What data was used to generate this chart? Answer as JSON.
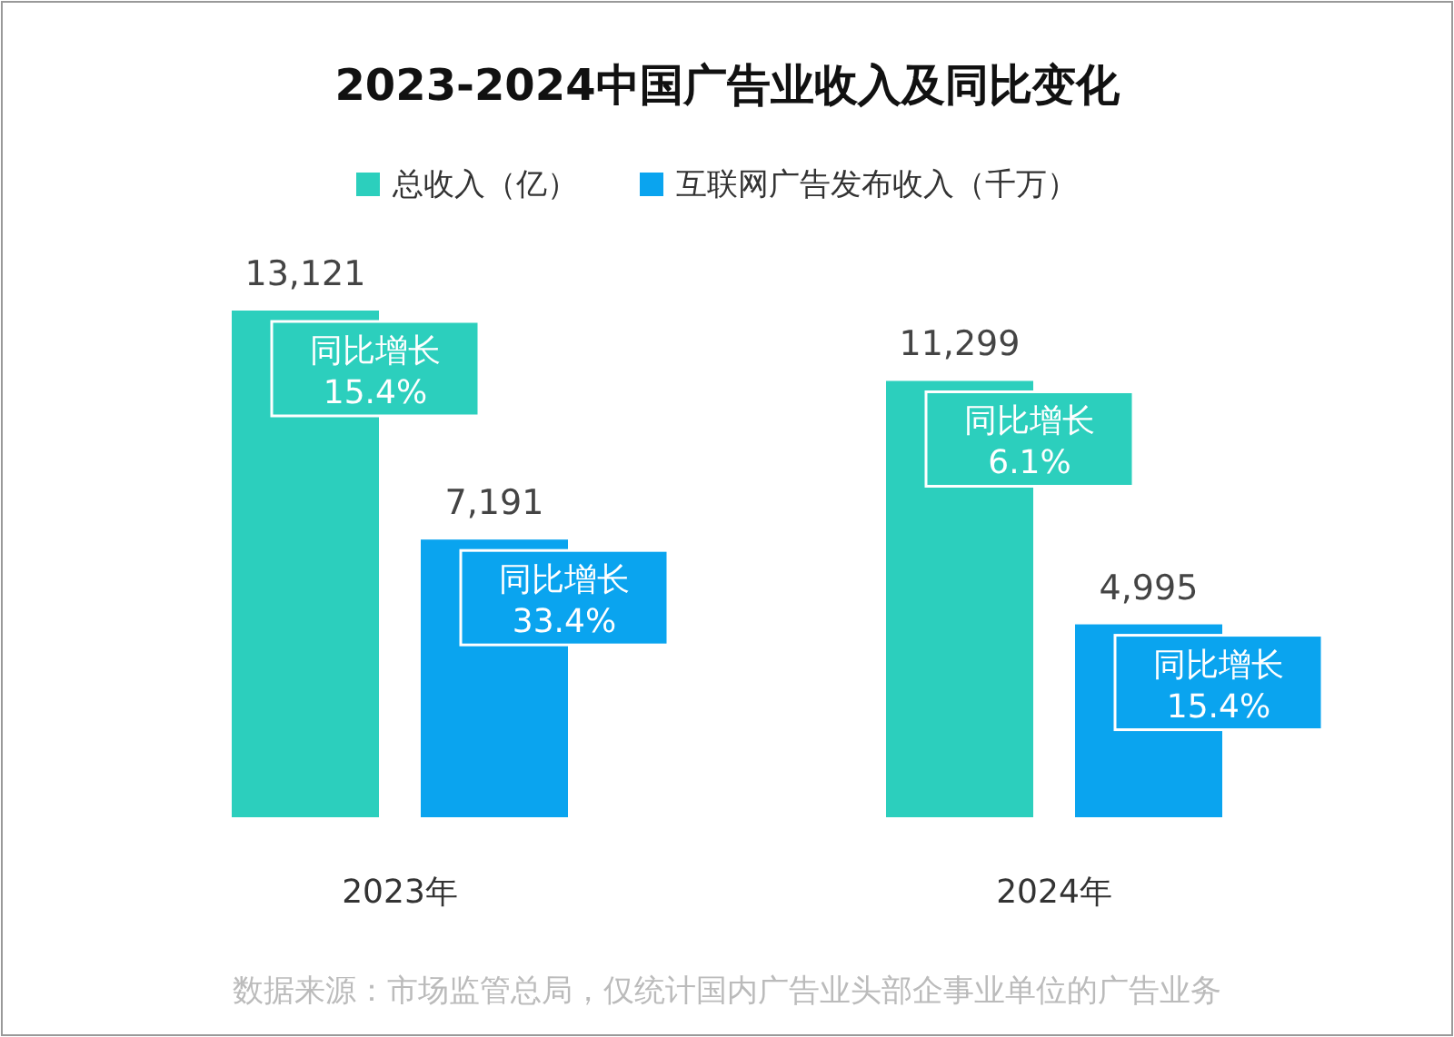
{
  "chart_data": {
    "type": "bar",
    "title": "2023-2024中国广告业收入及同比变化",
    "categories": [
      "2023年",
      "2024年"
    ],
    "series": [
      {
        "name": "总收入（亿）",
        "color": "#2ccfbd",
        "values": [
          13121,
          11299
        ],
        "value_labels": [
          "13,121",
          "11,299"
        ]
      },
      {
        "name": "互联网广告发布收入（千万）",
        "color": "#0aa4ef",
        "values": [
          7191,
          4995
        ],
        "value_labels": [
          "7,191",
          "4,995"
        ]
      }
    ],
    "legend": "top",
    "annotations": [
      "同比增长 15.4%",
      "同比增长 33.4%",
      "同比增长 6.1%",
      "同比增长 15.4%",
      "数据来源：市场监管总局，仅统计国内广告业头部企事业单位的广告业务"
    ]
  }
}
